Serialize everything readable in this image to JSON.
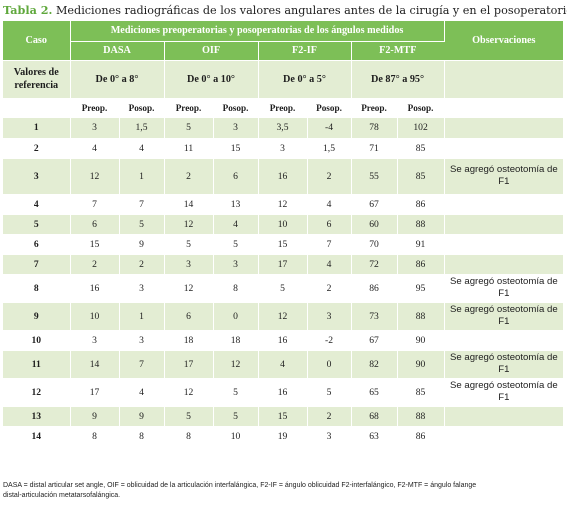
{
  "caption": {
    "label": "Tabla 2.",
    "text": "Mediciones radiográficas de los valores angulares antes de la cirugía y en el posoperatorio"
  },
  "header": {
    "caso": "Caso",
    "group": "Mediciones preoperatorias y posoperatorias de los ángulos medidos",
    "observaciones": "Observaciones",
    "measures": [
      "DASA",
      "OIF",
      "F2-IF",
      "F2-MTF"
    ]
  },
  "reference": {
    "label": "Valores de referencia",
    "values": [
      "De 0° a 8°",
      "De 0° a 10°",
      "De 0° a 5°",
      "De 87° a 95°"
    ]
  },
  "subheader": {
    "preop": "Preop.",
    "posop": "Posop."
  },
  "rows": [
    {
      "caso": "1",
      "vals": [
        "3",
        "1,5",
        "5",
        "3",
        "3,5",
        "-4",
        "78",
        "102"
      ],
      "obs": ""
    },
    {
      "caso": "2",
      "vals": [
        "4",
        "4",
        "11",
        "15",
        "3",
        "1,5",
        "71",
        "85"
      ],
      "obs": ""
    },
    {
      "caso": "3",
      "vals": [
        "12",
        "1",
        "2",
        "6",
        "16",
        "2",
        "55",
        "85"
      ],
      "obs": "Se agregó osteotomía de F1"
    },
    {
      "caso": "4",
      "vals": [
        "7",
        "7",
        "14",
        "13",
        "12",
        "4",
        "67",
        "86"
      ],
      "obs": ""
    },
    {
      "caso": "5",
      "vals": [
        "6",
        "5",
        "12",
        "4",
        "10",
        "6",
        "60",
        "88"
      ],
      "obs": ""
    },
    {
      "caso": "6",
      "vals": [
        "15",
        "9",
        "5",
        "5",
        "15",
        "7",
        "70",
        "91"
      ],
      "obs": ""
    },
    {
      "caso": "7",
      "vals": [
        "2",
        "2",
        "3",
        "3",
        "17",
        "4",
        "72",
        "86"
      ],
      "obs": ""
    },
    {
      "caso": "8",
      "vals": [
        "16",
        "3",
        "12",
        "8",
        "5",
        "2",
        "86",
        "95"
      ],
      "obs": "Se agregó osteotomía de F1"
    },
    {
      "caso": "9",
      "vals": [
        "10",
        "1",
        "6",
        "0",
        "12",
        "3",
        "73",
        "88"
      ],
      "obs": "Se agregó osteotomía de F1"
    },
    {
      "caso": "10",
      "vals": [
        "3",
        "3",
        "18",
        "18",
        "16",
        "-2",
        "67",
        "90"
      ],
      "obs": ""
    },
    {
      "caso": "11",
      "vals": [
        "14",
        "7",
        "17",
        "12",
        "4",
        "0",
        "82",
        "90"
      ],
      "obs": "Se agregó osteotomía de F1"
    },
    {
      "caso": "12",
      "vals": [
        "17",
        "4",
        "12",
        "5",
        "16",
        "5",
        "65",
        "85"
      ],
      "obs": "Se agregó osteotomía de F1"
    },
    {
      "caso": "13",
      "vals": [
        "9",
        "9",
        "5",
        "5",
        "15",
        "2",
        "68",
        "88"
      ],
      "obs": ""
    },
    {
      "caso": "14",
      "vals": [
        "8",
        "8",
        "8",
        "10",
        "19",
        "3",
        "63",
        "86"
      ],
      "obs": ""
    }
  ],
  "footnote": {
    "line1": "DASA = distal articular set angle, OIF = oblicuidad de la articulación interfalángica, F2-IF = ángulo oblicuidad F2-interfalángico, F2-MTF = ángulo falange",
    "line2": "distal-articulación metatarsofalángica."
  },
  "colors": {
    "header_green": "#7dbf57",
    "row_light": "#e3edd3",
    "caption_green": "#5fa83c"
  }
}
